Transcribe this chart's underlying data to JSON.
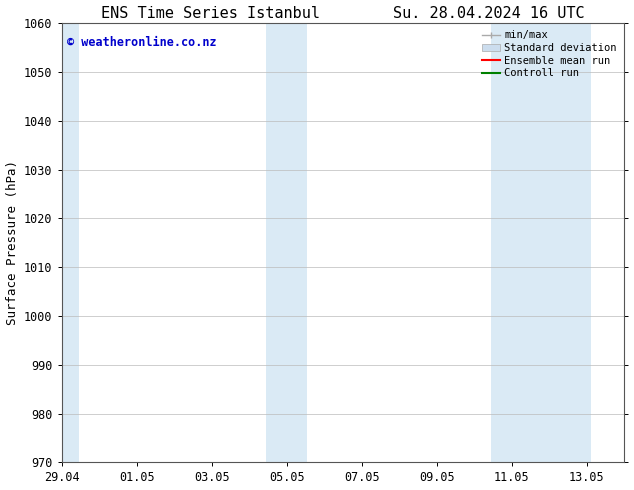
{
  "title_left": "ENS Time Series Istanbul",
  "title_right": "Su. 28.04.2024 16 UTC",
  "ylabel": "Surface Pressure (hPa)",
  "ylim": [
    970,
    1060
  ],
  "yticks": [
    970,
    980,
    990,
    1000,
    1010,
    1020,
    1030,
    1040,
    1050,
    1060
  ],
  "xtick_labels": [
    "29.04",
    "01.05",
    "03.05",
    "05.05",
    "07.05",
    "09.05",
    "11.05",
    "13.05"
  ],
  "xtick_positions": [
    0,
    2,
    4,
    6,
    8,
    10,
    12,
    14
  ],
  "xlim": [
    0,
    15
  ],
  "shaded_regions": [
    {
      "x_start": -0.1,
      "x_end": 0.45
    },
    {
      "x_start": 5.45,
      "x_end": 6.55
    },
    {
      "x_start": 11.45,
      "x_end": 14.1
    }
  ],
  "shade_color": "#daeaf5",
  "bg_color": "#ffffff",
  "plot_bg_color": "#ffffff",
  "grid_color": "#bbbbbb",
  "title_fontsize": 11,
  "tick_fontsize": 8.5,
  "ylabel_fontsize": 9,
  "watermark_text": "© weatheronline.co.nz",
  "watermark_color": "#0000cc",
  "legend_items": [
    {
      "label": "min/max",
      "color": "#aaaaaa",
      "style": "line_with_caps"
    },
    {
      "label": "Standard deviation",
      "color": "#ccddee",
      "style": "filled_box"
    },
    {
      "label": "Ensemble mean run",
      "color": "#ff0000",
      "style": "line"
    },
    {
      "label": "Controll run",
      "color": "#008000",
      "style": "line"
    }
  ]
}
